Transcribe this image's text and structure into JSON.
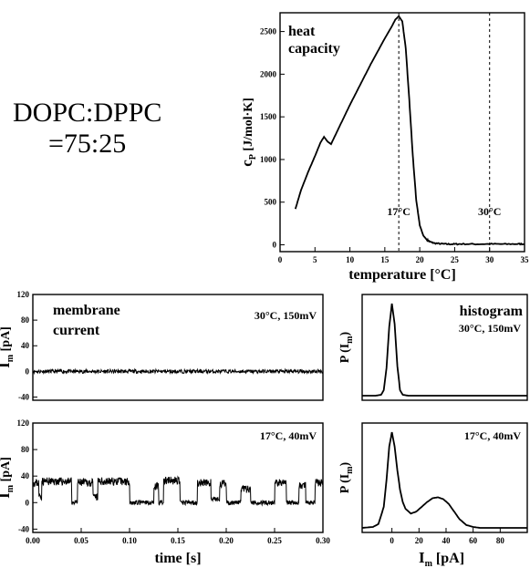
{
  "composition": {
    "line1": "DOPC:DPPC",
    "line2": "=75:25"
  },
  "chart_data": [
    {
      "id": "heat_capacity",
      "type": "line",
      "title_line1": "heat",
      "title_line2": "capacity",
      "xlabel": "temperature [°C]",
      "ylabel_main": "c",
      "ylabel_sub": "P",
      "ylabel_rest": " [J/mol·K]",
      "xlim": [
        0,
        35
      ],
      "ylim": [
        -80,
        2720
      ],
      "xticks": [
        0,
        5,
        10,
        15,
        20,
        25,
        30,
        35
      ],
      "yticks": [
        0,
        500,
        1000,
        1500,
        2000,
        2500
      ],
      "grid": false,
      "annotations": [
        {
          "x": 17,
          "label": "17°C",
          "style": "dashed-vertical"
        },
        {
          "x": 30,
          "label": "30°C",
          "style": "dashed-vertical"
        }
      ],
      "x": [
        2.2,
        3,
        4,
        5,
        5.8,
        6.3,
        6.8,
        7.3,
        8,
        9,
        10,
        11,
        12,
        13,
        14,
        15,
        16,
        16.5,
        17,
        17.5,
        18,
        18.5,
        19,
        19.5,
        20,
        20.5,
        21,
        21.5,
        22,
        23,
        24,
        25,
        26,
        28,
        30,
        32,
        34,
        35
      ],
      "y": [
        420,
        640,
        850,
        1040,
        1200,
        1265,
        1210,
        1180,
        1300,
        1470,
        1640,
        1800,
        1960,
        2120,
        2270,
        2420,
        2560,
        2640,
        2680,
        2620,
        2300,
        1700,
        1050,
        520,
        230,
        110,
        60,
        35,
        20,
        12,
        8,
        8,
        10,
        8,
        10,
        8,
        10,
        9
      ]
    },
    {
      "id": "current_30C",
      "type": "line",
      "title_line1": "membrane",
      "title_line2": "current",
      "condition": "30°C, 150mV",
      "ylabel_main": "I",
      "ylabel_sub": "m",
      "ylabel_rest": " [pA]",
      "xlim": [
        0,
        0.3
      ],
      "ylim": [
        -45,
        120
      ],
      "yticks": [
        -40,
        0,
        40,
        80,
        120
      ],
      "baseline": 0,
      "noise_amplitude": 3
    },
    {
      "id": "current_17C",
      "type": "line",
      "condition": "17°C,  40mV",
      "ylabel_main": "I",
      "ylabel_sub": "m",
      "ylabel_rest": " [pA]",
      "xlabel": "time [s]",
      "xlim": [
        0,
        0.3
      ],
      "ylim": [
        -45,
        120
      ],
      "xticks": [
        0.0,
        0.05,
        0.1,
        0.15,
        0.2,
        0.25,
        0.3
      ],
      "xtick_labels": [
        "0.00",
        "0.05",
        "0.10",
        "0.15",
        "0.20",
        "0.25",
        "0.30"
      ],
      "yticks": [
        -40,
        0,
        40,
        80,
        120
      ],
      "levels": [
        0,
        35
      ],
      "segments": [
        [
          0.0,
          0.006,
          30
        ],
        [
          0.006,
          0.009,
          10
        ],
        [
          0.009,
          0.04,
          32
        ],
        [
          0.04,
          0.046,
          0
        ],
        [
          0.046,
          0.062,
          30
        ],
        [
          0.062,
          0.067,
          8
        ],
        [
          0.067,
          0.1,
          32
        ],
        [
          0.1,
          0.125,
          0
        ],
        [
          0.125,
          0.13,
          25
        ],
        [
          0.13,
          0.135,
          0
        ],
        [
          0.135,
          0.152,
          33
        ],
        [
          0.152,
          0.17,
          0
        ],
        [
          0.17,
          0.184,
          30
        ],
        [
          0.184,
          0.193,
          5
        ],
        [
          0.193,
          0.2,
          28
        ],
        [
          0.2,
          0.215,
          0
        ],
        [
          0.215,
          0.225,
          20
        ],
        [
          0.225,
          0.25,
          0
        ],
        [
          0.25,
          0.262,
          30
        ],
        [
          0.262,
          0.275,
          0
        ],
        [
          0.275,
          0.282,
          25
        ],
        [
          0.282,
          0.292,
          0
        ],
        [
          0.292,
          0.3,
          30
        ]
      ],
      "noise_amplitude": 6
    },
    {
      "id": "histogram_30C",
      "type": "line",
      "title": "histogram",
      "condition": "30°C, 150mV",
      "ylabel_main": "P (I",
      "ylabel_sub": "m",
      "ylabel_rest": ")",
      "xlim": [
        -22,
        100
      ],
      "x": [
        -22,
        -12,
        -8,
        -6,
        -4,
        -2,
        0,
        2,
        4,
        6,
        8,
        12,
        20,
        40,
        60,
        80,
        100
      ],
      "y": [
        0,
        0,
        0.01,
        0.06,
        0.3,
        0.75,
        1.0,
        0.78,
        0.32,
        0.06,
        0.01,
        0,
        0,
        0,
        0,
        0,
        0
      ]
    },
    {
      "id": "histogram_17C",
      "type": "line",
      "condition": "17°C,  40mV",
      "ylabel_main": "P (I",
      "ylabel_sub": "m",
      "ylabel_rest": ")",
      "xlabel_main": "I",
      "xlabel_sub": "m",
      "xlabel_rest": " [pA]",
      "xlim": [
        -22,
        100
      ],
      "xticks": [
        0,
        20,
        40,
        60,
        80
      ],
      "x": [
        -22,
        -14,
        -10,
        -6,
        -4,
        -2,
        0,
        2,
        4,
        6,
        8,
        10,
        14,
        18,
        22,
        26,
        30,
        34,
        38,
        42,
        46,
        50,
        55,
        60,
        65,
        75,
        100
      ],
      "y": [
        0,
        0.01,
        0.04,
        0.22,
        0.5,
        0.85,
        1.0,
        0.85,
        0.6,
        0.4,
        0.27,
        0.2,
        0.15,
        0.17,
        0.22,
        0.27,
        0.31,
        0.32,
        0.3,
        0.25,
        0.17,
        0.09,
        0.03,
        0.01,
        0,
        0,
        0
      ]
    }
  ]
}
